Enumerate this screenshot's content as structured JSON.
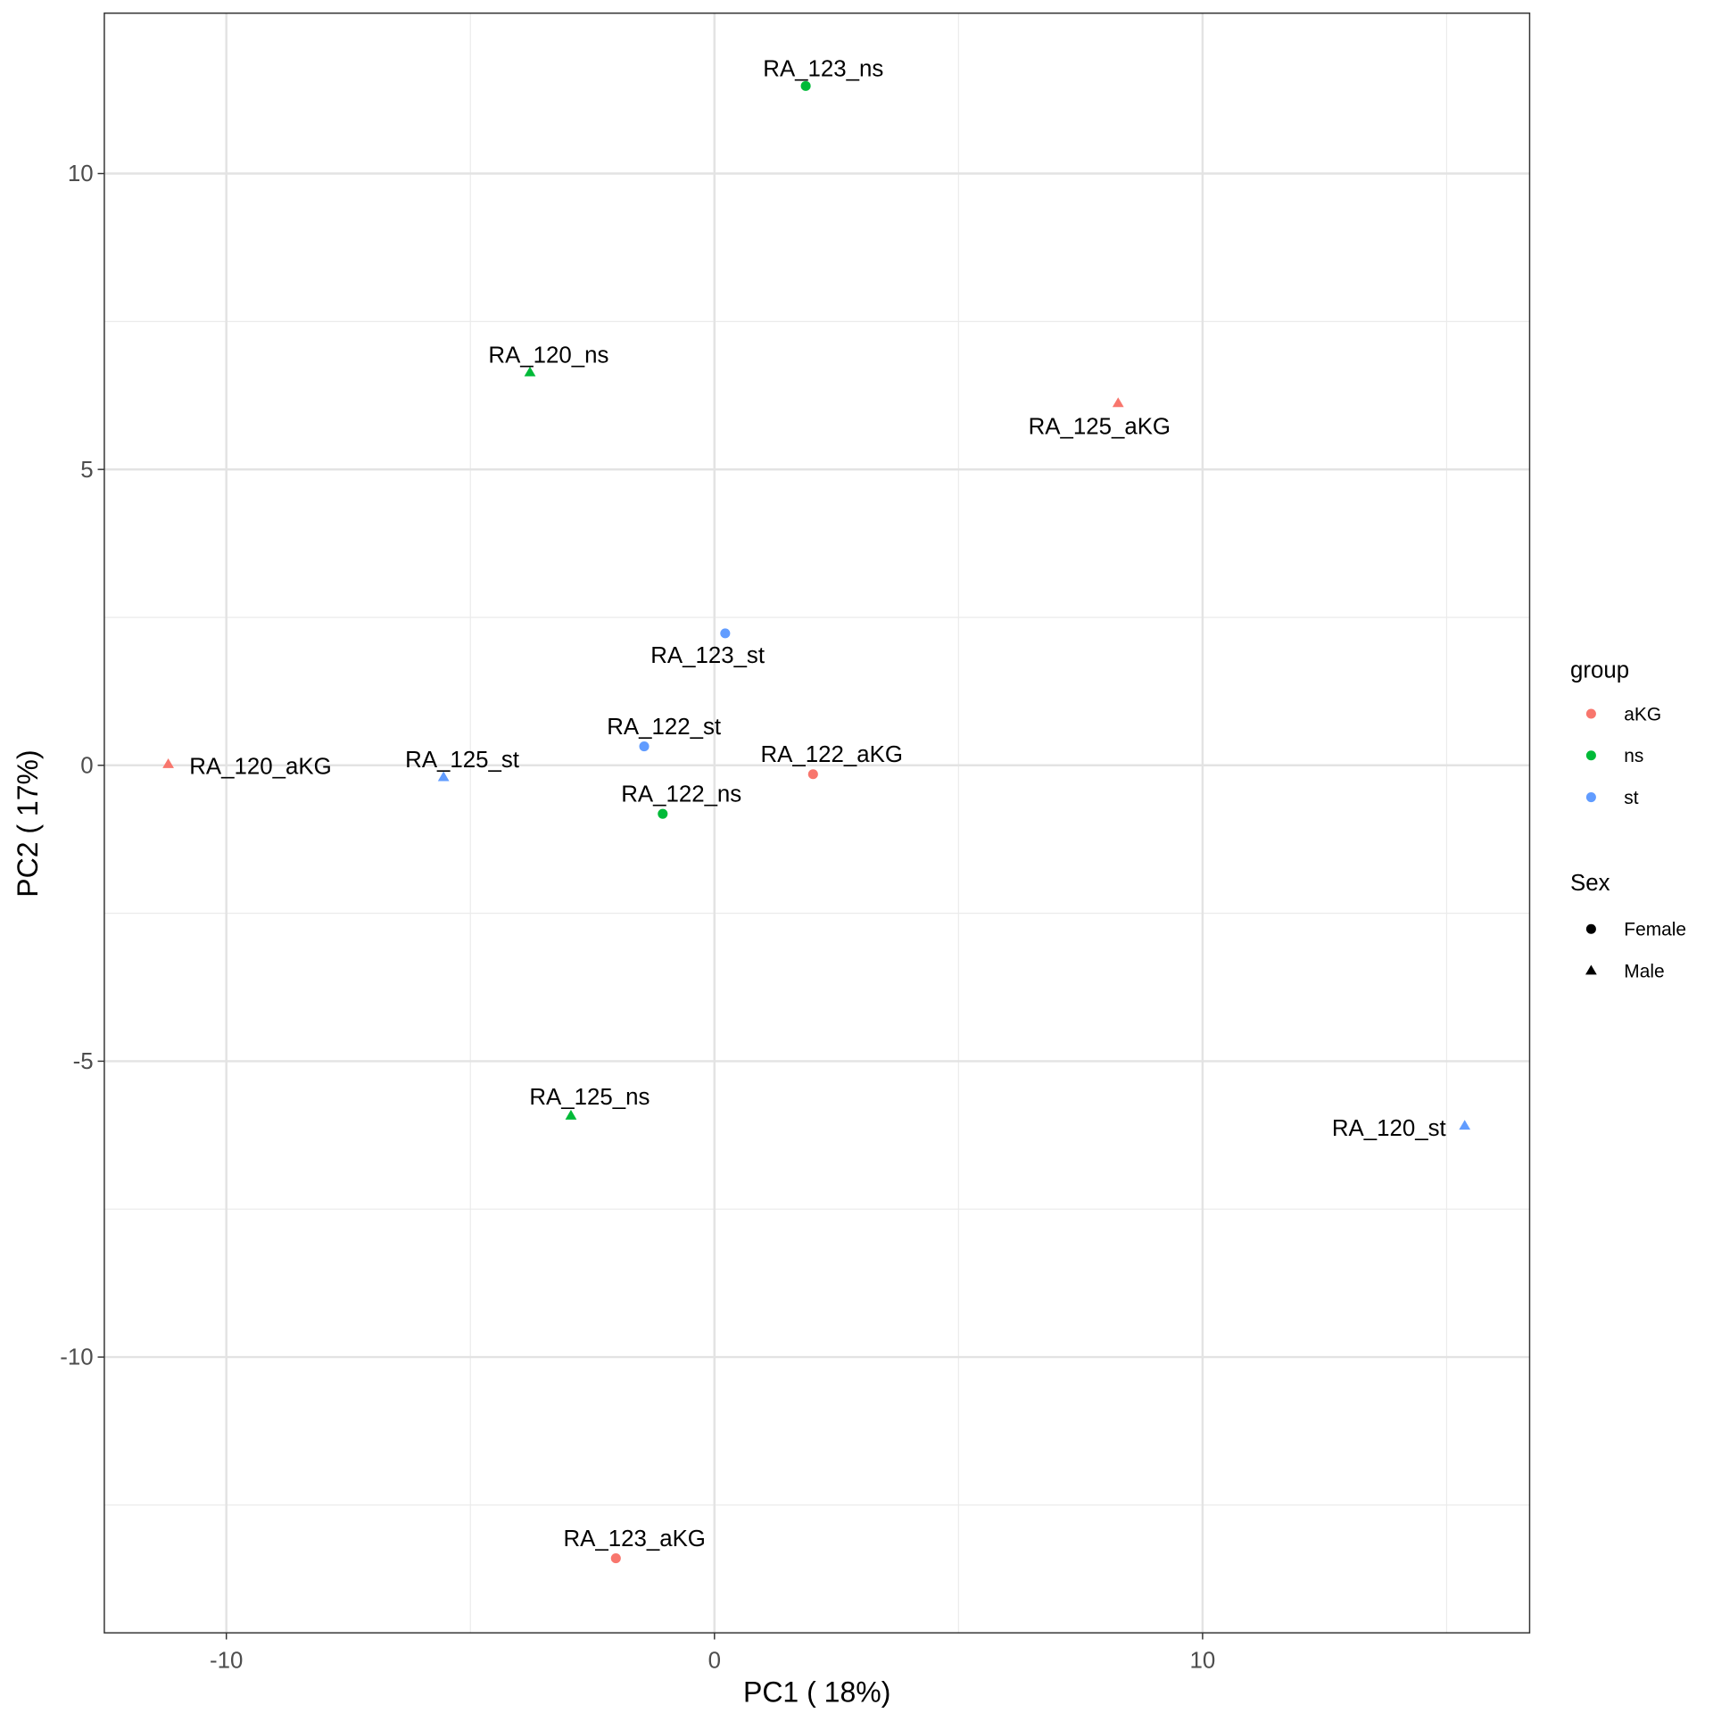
{
  "chart_data": {
    "type": "scatter",
    "title": "",
    "xlabel": "PC1 ( 18%)",
    "ylabel": "PC2 ( 17%)",
    "xlim": [
      -12.5,
      16.7
    ],
    "ylim": [
      -14.66,
      12.71
    ],
    "x_ticks": [
      -10,
      0,
      10
    ],
    "y_ticks": [
      -10,
      -5,
      0,
      5,
      10
    ],
    "x_tick_labels": [
      "-10",
      "0",
      "10"
    ],
    "y_tick_labels": [
      "-10",
      "-5",
      "0",
      "5",
      "10"
    ],
    "grid": true,
    "legend_placement": "right",
    "legend": {
      "group_title": "group",
      "groups": [
        {
          "name": "aKG",
          "color": "#F8766D"
        },
        {
          "name": "ns",
          "color": "#00BA38"
        },
        {
          "name": "st",
          "color": "#619CFF"
        }
      ],
      "sex_title": "Sex",
      "sexes": [
        {
          "name": "Female",
          "shape": "circle"
        },
        {
          "name": "Male",
          "shape": "triangle"
        }
      ]
    },
    "points": [
      {
        "label": "RA_123_ns",
        "x": 1.87,
        "y": 11.48,
        "group": "ns",
        "sex": "Female"
      },
      {
        "label": "RA_120_ns",
        "x": -3.78,
        "y": 6.64,
        "group": "ns",
        "sex": "Male"
      },
      {
        "label": "RA_125_aKG",
        "x": 8.27,
        "y": 6.12,
        "group": "aKG",
        "sex": "Male"
      },
      {
        "label": "RA_123_st",
        "x": 0.22,
        "y": 2.23,
        "group": "st",
        "sex": "Female"
      },
      {
        "label": "RA_122_st",
        "x": -1.44,
        "y": 0.32,
        "group": "st",
        "sex": "Female"
      },
      {
        "label": "RA_120_aKG",
        "x": -11.19,
        "y": 0.02,
        "group": "aKG",
        "sex": "Male"
      },
      {
        "label": "RA_125_st",
        "x": -5.55,
        "y": -0.2,
        "group": "st",
        "sex": "Male"
      },
      {
        "label": "RA_122_aKG",
        "x": 2.02,
        "y": -0.15,
        "group": "aKG",
        "sex": "Female"
      },
      {
        "label": "RA_122_ns",
        "x": -1.06,
        "y": -0.82,
        "group": "ns",
        "sex": "Female"
      },
      {
        "label": "RA_125_ns",
        "x": -2.94,
        "y": -5.92,
        "group": "ns",
        "sex": "Male"
      },
      {
        "label": "RA_120_st",
        "x": 15.37,
        "y": -6.09,
        "group": "st",
        "sex": "Male"
      },
      {
        "label": "RA_123_aKG",
        "x": -2.02,
        "y": -13.4,
        "group": "aKG",
        "sex": "Female"
      }
    ]
  }
}
